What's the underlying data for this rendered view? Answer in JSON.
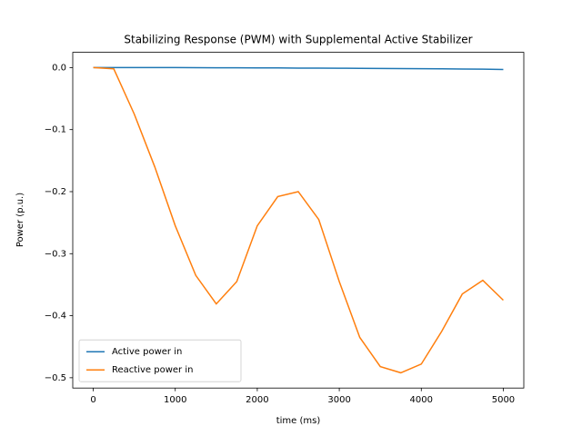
{
  "chart_data": {
    "type": "line",
    "title": "Stabilizing Response (PWM) with Supplemental Active Stabilizer",
    "x_label": "time (ms)",
    "y_label": "Power (p.u.)",
    "x": [
      0,
      250,
      500,
      750,
      1000,
      1250,
      1500,
      1750,
      2000,
      2250,
      2500,
      2750,
      3000,
      3250,
      3500,
      3750,
      4000,
      4250,
      4500,
      4750,
      5000
    ],
    "series": [
      {
        "name": "Active power in",
        "color": "#1f77b4",
        "values": [
          0,
          0,
          0,
          0,
          0,
          -0.0002,
          -0.0003,
          -0.0004,
          -0.0005,
          -0.0006,
          -0.0008,
          -0.0009,
          -0.001,
          -0.0012,
          -0.0014,
          -0.0016,
          -0.0018,
          -0.002,
          -0.0023,
          -0.0026,
          -0.003
        ]
      },
      {
        "name": "Reactive power in",
        "color": "#ff7f0e",
        "values": [
          0,
          -0.002,
          -0.075,
          -0.16,
          -0.255,
          -0.335,
          -0.381,
          -0.345,
          -0.255,
          -0.208,
          -0.2,
          -0.245,
          -0.345,
          -0.435,
          -0.482,
          -0.492,
          -0.478,
          -0.425,
          -0.365,
          -0.343,
          -0.375
        ]
      }
    ],
    "xlim": [
      -250,
      5250
    ],
    "xticks": [
      0,
      1000,
      2000,
      3000,
      4000,
      5000
    ],
    "ylim": [
      -0.5166,
      0.0246
    ],
    "yticks": [
      {
        "value": 0,
        "label": "0.0"
      },
      {
        "value": -0.1,
        "label": "−0.1"
      },
      {
        "value": -0.2,
        "label": "−0.2"
      },
      {
        "value": -0.3,
        "label": "−0.3"
      },
      {
        "value": -0.4,
        "label": "−0.4"
      },
      {
        "value": -0.5,
        "label": "−0.5"
      }
    ],
    "legend": "lower left",
    "grid": false
  }
}
